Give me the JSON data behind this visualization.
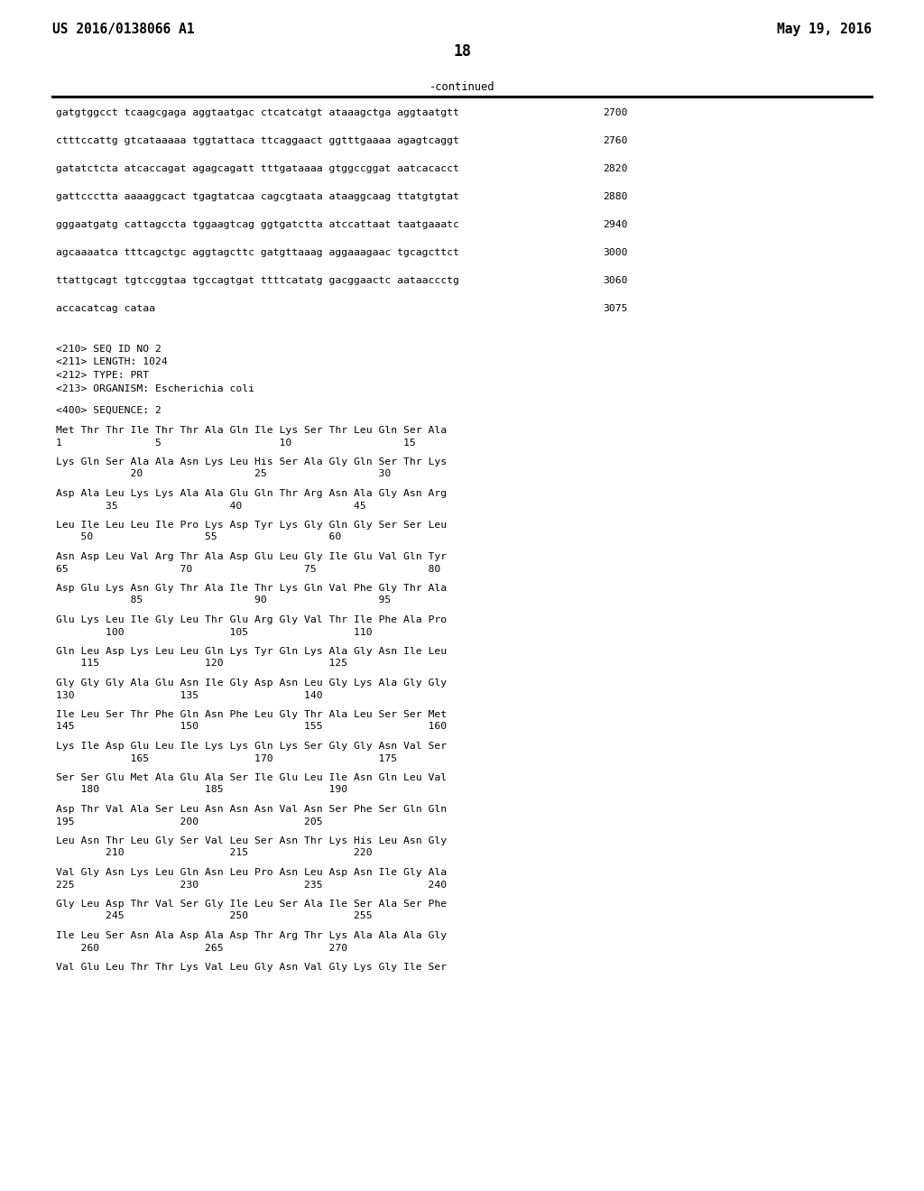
{
  "header_left": "US 2016/0138066 A1",
  "header_right": "May 19, 2016",
  "page_number": "18",
  "continued_label": "-continued",
  "background_color": "#ffffff",
  "text_color": "#000000",
  "font_size_header": 10.5,
  "font_size_body": 8.2,
  "font_size_page": 12,
  "dna_lines": [
    {
      "seq": "gatgtggcct tcaagcgaga aggtaatgac ctcatcatgt ataaagctga aggtaatgtt",
      "num": "2700"
    },
    {
      "seq": "ctttccattg gtcataaaaa tggtattaca ttcaggaact ggtttgaaaa agagtcaggt",
      "num": "2760"
    },
    {
      "seq": "gatatctcta atcaccagat agagcagatt tttgataaaa gtggccggat aatcacacct",
      "num": "2820"
    },
    {
      "seq": "gattccctta aaaaggcact tgagtatcaa cagcgtaata ataaggcaag ttatgtgtat",
      "num": "2880"
    },
    {
      "seq": "gggaatgatg cattagccta tggaagtcag ggtgatctta atccattaat taatgaaatc",
      "num": "2940"
    },
    {
      "seq": "agcaaaatca tttcagctgc aggtagcttc gatgttaaag aggaaagaac tgcagcttct",
      "num": "3000"
    },
    {
      "seq": "ttattgcagt tgtccggtaa tgccagtgat ttttcatatg gacggaactc aataaccctg",
      "num": "3060"
    },
    {
      "seq": "accacatcag cataa",
      "num": "3075"
    }
  ],
  "metadata_lines": [
    "<210> SEQ ID NO 2",
    "<211> LENGTH: 1024",
    "<212> TYPE: PRT",
    "<213> ORGANISM: Escherichia coli"
  ],
  "sequence_label": "<400> SEQUENCE: 2",
  "protein_pairs": [
    [
      "Met Thr Thr Ile Thr Thr Ala Gln Ile Lys Ser Thr Leu Gln Ser Ala",
      "1               5                   10                  15"
    ],
    [
      "Lys Gln Ser Ala Ala Asn Lys Leu His Ser Ala Gly Gln Ser Thr Lys",
      "            20                  25                  30"
    ],
    [
      "Asp Ala Leu Lys Lys Ala Ala Glu Gln Thr Arg Asn Ala Gly Asn Arg",
      "        35                  40                  45"
    ],
    [
      "Leu Ile Leu Leu Ile Pro Lys Asp Tyr Lys Gly Gln Gly Ser Ser Leu",
      "    50                  55                  60"
    ],
    [
      "Asn Asp Leu Val Arg Thr Ala Asp Glu Leu Gly Ile Glu Val Gln Tyr",
      "65                  70                  75                  80"
    ],
    [
      "Asp Glu Lys Asn Gly Thr Ala Ile Thr Lys Gln Val Phe Gly Thr Ala",
      "            85                  90                  95"
    ],
    [
      "Glu Lys Leu Ile Gly Leu Thr Glu Arg Gly Val Thr Ile Phe Ala Pro",
      "        100                 105                 110"
    ],
    [
      "Gln Leu Asp Lys Leu Leu Gln Lys Tyr Gln Lys Ala Gly Asn Ile Leu",
      "    115                 120                 125"
    ],
    [
      "Gly Gly Gly Ala Glu Asn Ile Gly Asp Asn Leu Gly Lys Ala Gly Gly",
      "130                 135                 140"
    ],
    [
      "Ile Leu Ser Thr Phe Gln Asn Phe Leu Gly Thr Ala Leu Ser Ser Met",
      "145                 150                 155                 160"
    ],
    [
      "Lys Ile Asp Glu Leu Ile Lys Lys Gln Lys Ser Gly Gly Asn Val Ser",
      "            165                 170                 175"
    ],
    [
      "Ser Ser Glu Met Ala Glu Ala Ser Ile Glu Leu Ile Asn Gln Leu Val",
      "    180                 185                 190"
    ],
    [
      "Asp Thr Val Ala Ser Leu Asn Asn Asn Val Asn Ser Phe Ser Gln Gln",
      "195                 200                 205"
    ],
    [
      "Leu Asn Thr Leu Gly Ser Val Leu Ser Asn Thr Lys His Leu Asn Gly",
      "        210                 215                 220"
    ],
    [
      "Val Gly Asn Lys Leu Gln Asn Leu Pro Asn Leu Asp Asn Ile Gly Ala",
      "225                 230                 235                 240"
    ],
    [
      "Gly Leu Asp Thr Val Ser Gly Ile Leu Ser Ala Ile Ser Ala Ser Phe",
      "        245                 250                 255"
    ],
    [
      "Ile Leu Ser Asn Ala Asp Ala Asp Thr Arg Thr Lys Ala Ala Ala Gly",
      "    260                 265                 270"
    ],
    [
      "Val Glu Leu Thr Thr Lys Val Leu Gly Asn Val Gly Lys Gly Ile Ser",
      ""
    ]
  ]
}
